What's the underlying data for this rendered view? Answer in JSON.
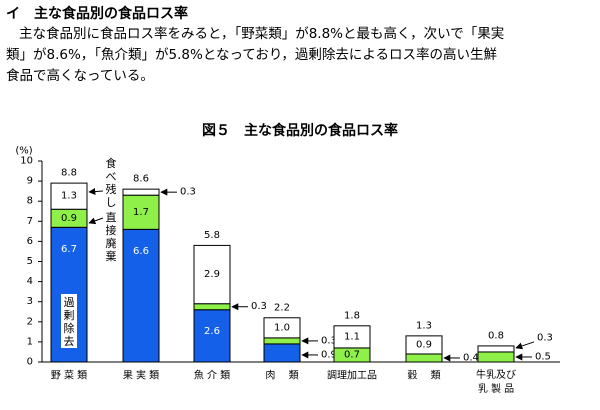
{
  "section": {
    "title": "イ　主な食品別の食品ロス率"
  },
  "paragraph": {
    "line1": "主な食品別に食品ロス率をみると，「野菜類」が8.8%と最も高く，次いで「果実",
    "line2": "類」が8.6%，「魚介類」が5.8%となっており，過剰除去によるロス率の高い生鮮",
    "line3": "食品で高くなっている。"
  },
  "chart_data": {
    "type": "bar",
    "stacked": true,
    "title": "図５　主な食品別の食品ロス率",
    "ylabel": "(%)",
    "ylim": [
      0,
      10
    ],
    "yticks": [
      "0",
      "1",
      "2",
      "3",
      "4",
      "5",
      "6",
      "7",
      "8",
      "9",
      "10"
    ],
    "categories": [
      "野 菜 類",
      "果 実 類",
      "魚 介 類",
      "肉　 類",
      "調理加工品",
      "穀　 類",
      "牛乳及び乳 製 品"
    ],
    "series": [
      {
        "key": "kajo",
        "name": "過剰除去",
        "color": "#1560e8",
        "values": [
          6.7,
          6.6,
          2.6,
          0.9,
          0,
          0,
          0
        ],
        "labels": [
          "6.7",
          "6.6",
          "2.6",
          "0.9",
          "",
          "",
          ""
        ]
      },
      {
        "key": "chokusetsu",
        "name": "直接廃棄",
        "color": "#8ff04a",
        "values": [
          0.9,
          1.7,
          0.3,
          0.3,
          0.7,
          0.4,
          0.5
        ],
        "labels": [
          "0.9",
          "1.7",
          "0.3",
          "0.3",
          "0.7",
          "0.4",
          "0.5"
        ]
      },
      {
        "key": "tabenokoshi",
        "name": "食べ残し",
        "color": "#ffffff",
        "values": [
          1.3,
          0.3,
          2.9,
          1.0,
          1.1,
          0.9,
          0.3
        ],
        "labels": [
          "1.3",
          "0.3",
          "2.9",
          "1.0",
          "1.1",
          "0.9",
          "0.3"
        ]
      }
    ],
    "totals": [
      "8.8",
      "8.6",
      "5.8",
      "2.2",
      "1.8",
      "1.3",
      "0.8"
    ],
    "annotations": {
      "kajo_vertical": "過剰除去",
      "tabenokoshi_vertical": "食べ残し",
      "chokusetsu_vertical": "直接廃棄"
    },
    "grid": false,
    "legend": "none"
  }
}
